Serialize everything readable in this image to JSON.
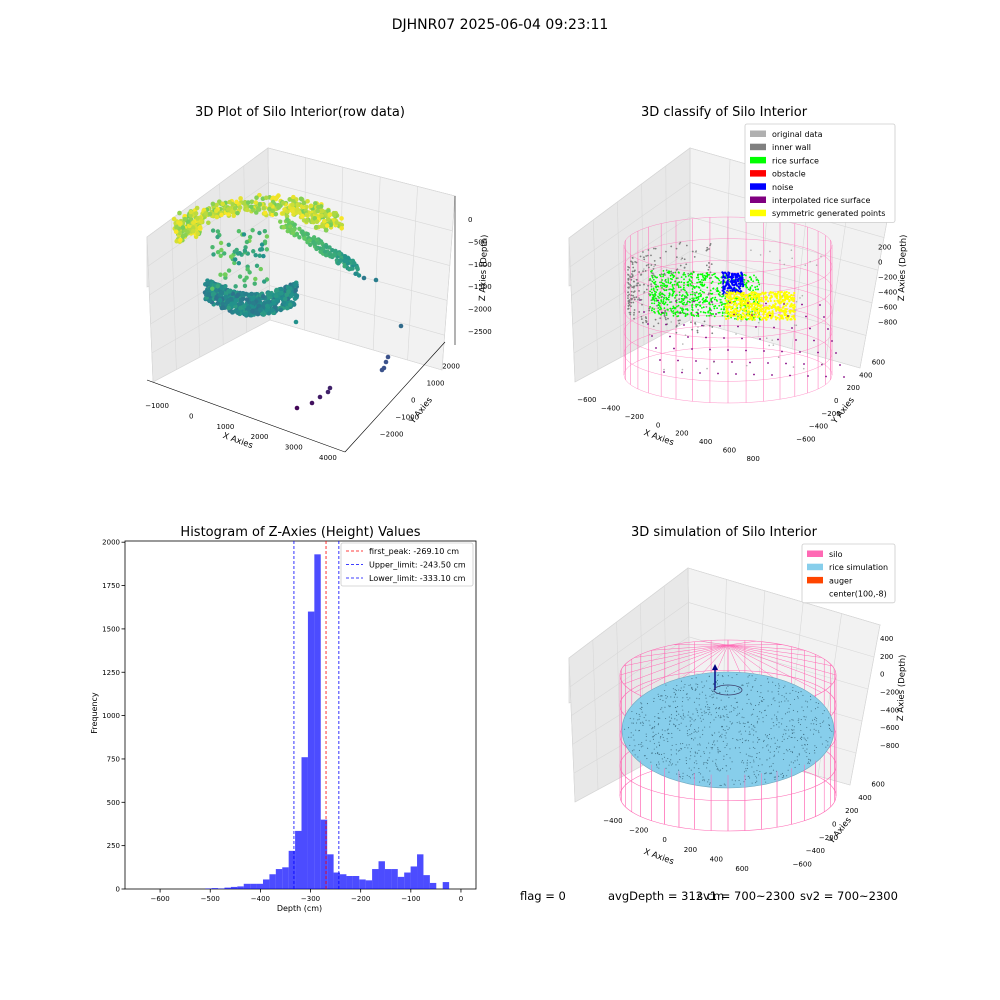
{
  "figure": {
    "suptitle": "DJHNR07 2025-06-04 09:23:11",
    "status": {
      "flag": "flag = 0",
      "avg_depth": "avgDepth = 312 cm",
      "sv1": "sv1 = 700~2300",
      "sv2": "sv2 = 700~2300"
    }
  },
  "chart_data": [
    {
      "type": "scatter",
      "title": "3D Plot of Silo Interior(row data)",
      "xlabel": "X Axies",
      "ylabel": "Y Axies",
      "zlabel": "Z Axies (Depth)",
      "x_ticks": [
        "−1000",
        "0",
        "1000",
        "2000",
        "3000",
        "4000"
      ],
      "y_ticks": [
        "−2000",
        "−1000",
        "0",
        "1000",
        "2000"
      ],
      "z_ticks": [
        "0",
        "−500",
        "−1000",
        "−1500",
        "−2000",
        "−2500"
      ],
      "colormap": [
        "#440154",
        "#3b528b",
        "#21918c",
        "#5ec962",
        "#fde725"
      ]
    },
    {
      "type": "scatter",
      "title": "3D classify of Silo Interior",
      "xlabel": "X Axies",
      "ylabel": "Y Axies",
      "zlabel": "Z Axies (Depth)",
      "x_ticks": [
        "−600",
        "−400",
        "−200",
        "0",
        "200",
        "400",
        "600",
        "800"
      ],
      "y_ticks": [
        "−600",
        "−400",
        "−200",
        "0",
        "200",
        "400",
        "600"
      ],
      "z_ticks": [
        "200",
        "0",
        "−200",
        "−400",
        "−600",
        "−800"
      ],
      "z_ticks_partial": [
        "400"
      ],
      "legend": [
        {
          "label": "original data",
          "color": "#b0b0b0"
        },
        {
          "label": "inner wall",
          "color": "#808080"
        },
        {
          "label": "rice surface",
          "color": "#00ff00"
        },
        {
          "label": "obstacle",
          "color": "#ff0000"
        },
        {
          "label": "noise",
          "color": "#0000ff"
        },
        {
          "label": "interpolated rice surface",
          "color": "#800080"
        },
        {
          "label": "symmetric generated points",
          "color": "#ffff00"
        }
      ],
      "legend_loc": "upper right",
      "cylinder_color": "#ff69b4"
    },
    {
      "type": "bar",
      "title": "Histogram of Z-Axies (Height) Values",
      "xlabel": "Depth (cm)",
      "ylabel": "Frequency",
      "xlim": [
        -670,
        30
      ],
      "ylim": [
        0,
        2030
      ],
      "x_ticks": [
        -600,
        -500,
        -400,
        -300,
        -200,
        -100,
        0
      ],
      "y_ticks": [
        0,
        250,
        500,
        750,
        1000,
        1250,
        1500,
        1750,
        2000
      ],
      "x_tick_labels": [
        "−600",
        "−500",
        "−400",
        "−300",
        "−200",
        "−100",
        "0"
      ],
      "y_tick_labels": [
        "0",
        "250",
        "500",
        "750",
        "1000",
        "1250",
        "1500",
        "1750",
        "2000"
      ],
      "bin_start": -510,
      "bin_width": 12.8,
      "values": [
        3,
        5,
        3,
        8,
        12,
        15,
        30,
        30,
        30,
        55,
        85,
        115,
        125,
        220,
        335,
        760,
        1600,
        1930,
        400,
        200,
        95,
        85,
        75,
        75,
        55,
        50,
        115,
        160,
        115,
        115,
        70,
        95,
        130,
        200,
        80,
        35,
        0,
        40
      ],
      "bar_color": "#0000ff",
      "bar_alpha": 0.7,
      "lines": [
        {
          "label": "first_peak: -269.10 cm",
          "x": -269.1,
          "color": "#ff0000"
        },
        {
          "label": "Upper_limit: -243.50 cm",
          "x": -243.5,
          "color": "#0000ff"
        },
        {
          "label": "Lower_limit: -333.10 cm",
          "x": -333.1,
          "color": "#0000ff"
        }
      ],
      "legend_loc": "upper right"
    },
    {
      "type": "scatter",
      "title": "3D simulation of Silo Interior",
      "xlabel": "X Axies",
      "ylabel": "Y Axies",
      "zlabel": "Z Axies (Depth)",
      "x_ticks": [
        "−400",
        "−200",
        "0",
        "200",
        "400",
        "600"
      ],
      "y_ticks": [
        "−600",
        "−400",
        "−200",
        "0",
        "200",
        "400",
        "600"
      ],
      "z_ticks": [
        "400",
        "200",
        "0",
        "−200",
        "−400",
        "−600",
        "−800"
      ],
      "legend": [
        {
          "label": "silo",
          "color": "#ff69b4"
        },
        {
          "label": "rice simulation",
          "color": "#87ceeb"
        },
        {
          "label": "auger",
          "color": "#ff4500"
        },
        {
          "label": "center(100,-8)",
          "color": ""
        }
      ],
      "legend_loc": "upper right",
      "cylinder_color": "#ff69b4",
      "surface_color": "#87ceeb"
    }
  ]
}
